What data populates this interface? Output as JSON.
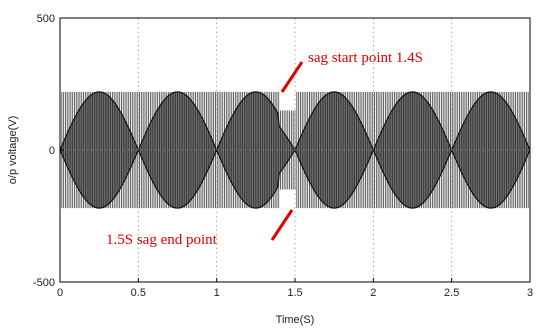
{
  "chart_data": {
    "type": "line",
    "title": "",
    "xlabel": "Time(S)",
    "ylabel": "o/p voltage(V)",
    "xlim": [
      0,
      3
    ],
    "ylim": [
      -500,
      500
    ],
    "xticks": [
      "0",
      "0.5",
      "1",
      "1.5",
      "2",
      "2.5",
      "3"
    ],
    "xtick_values": [
      0,
      0.5,
      1,
      1.5,
      2,
      2.5,
      3
    ],
    "yticks": [
      "500",
      "0",
      "-500"
    ],
    "ytick_values": [
      500,
      0,
      -500
    ],
    "grid": true,
    "colors": {
      "signal": "#333333",
      "envelope": "#111111",
      "annotation": "#e00000",
      "grid": "#999999"
    },
    "series": [
      {
        "pwm_level_v": 220,
        "sag_level_v": 150,
        "sag_start_s": 1.4,
        "sag_end_s": 1.5,
        "envelope_period_s": 1.0
      }
    ],
    "annotations": [
      {
        "text": "sag start point  1.4S",
        "x": 1.4,
        "y": 220
      },
      {
        "text": "1.5S sag end point",
        "x": 1.5,
        "y": -220
      }
    ]
  }
}
